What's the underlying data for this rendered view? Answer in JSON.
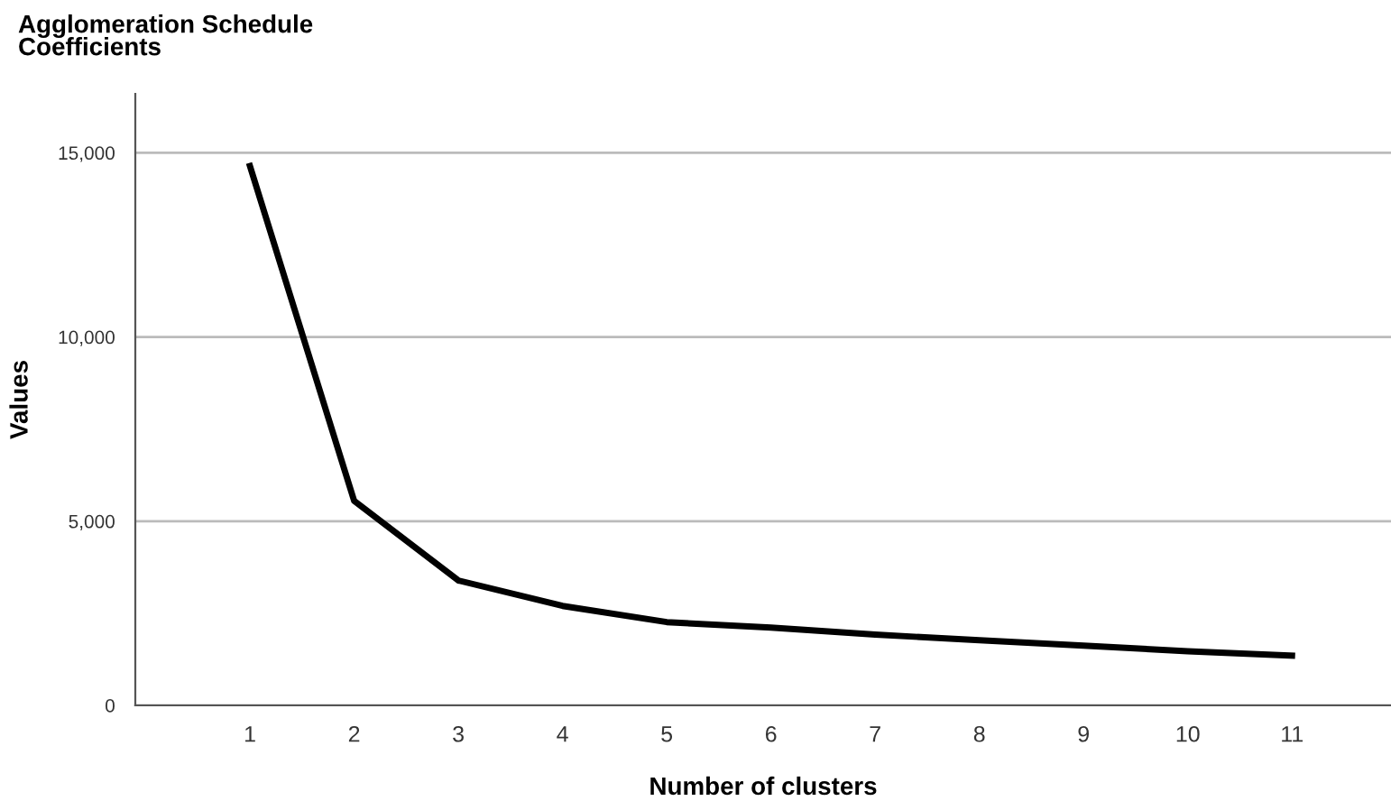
{
  "chart_data": {
    "type": "line",
    "title": "Agglomeration Schedule\nCoefficients",
    "xlabel": "Number of clusters",
    "ylabel": "Values",
    "categories": [
      "1",
      "2",
      "3",
      "4",
      "5",
      "6",
      "7",
      "8",
      "9",
      "10",
      "11"
    ],
    "series": [
      {
        "color": "#000000",
        "values": [
          14640,
          5550,
          3390,
          2700,
          2260,
          2110,
          1920,
          1770,
          1620,
          1470,
          1350
        ]
      }
    ],
    "ylim": [
      0,
      16600
    ],
    "yticks": [
      0,
      {
        "value": 5000,
        "label": "5,000"
      },
      {
        "value": 10000,
        "label": "10,000"
      },
      {
        "value": 15000,
        "label": "15,000"
      }
    ],
    "grid": "y",
    "marker": "none",
    "line_style": "solid"
  }
}
